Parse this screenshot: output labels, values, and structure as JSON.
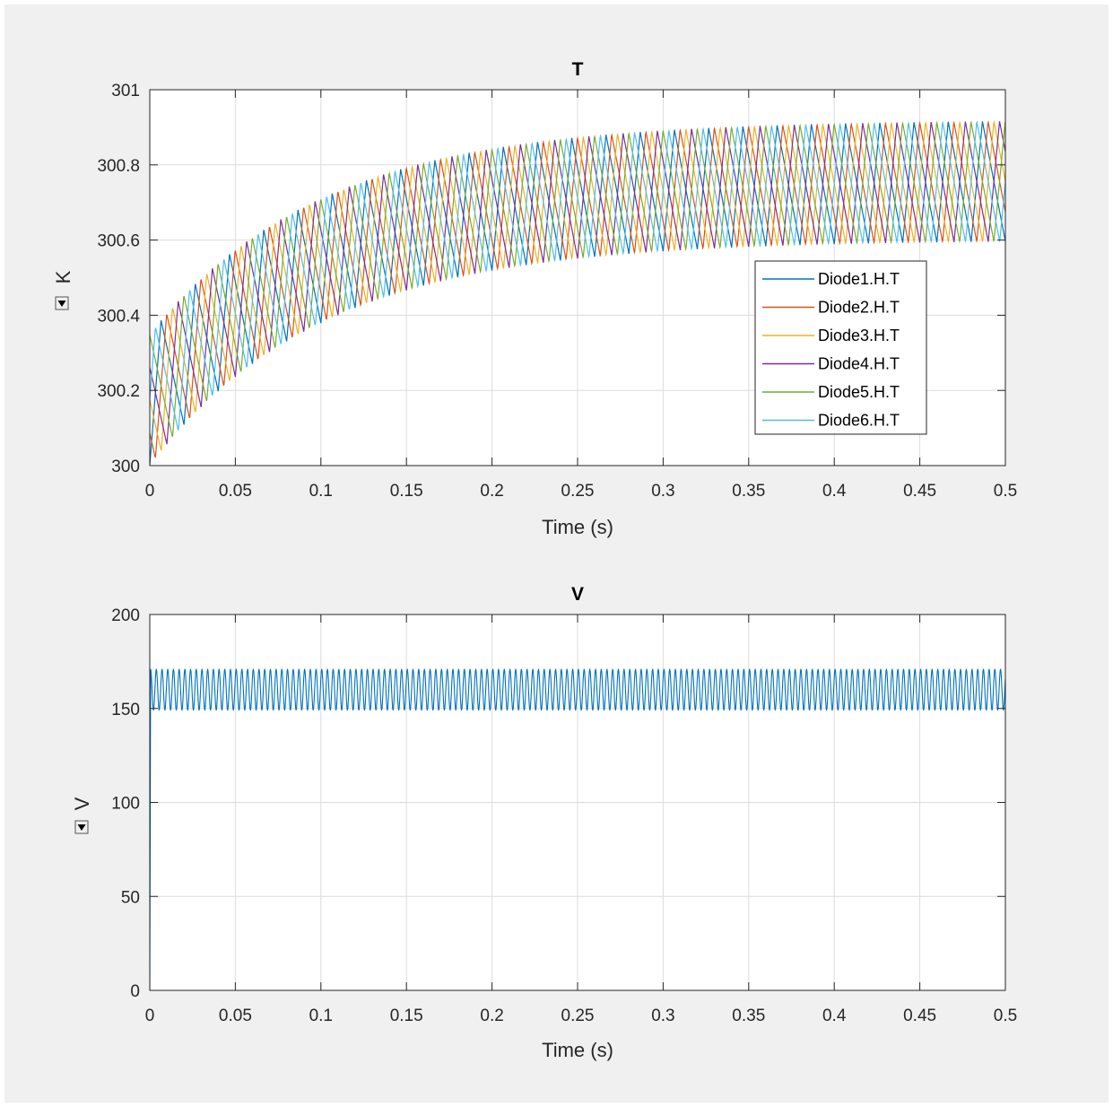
{
  "colors": {
    "figure_background": "#f0f0f0",
    "axes_background": "#ffffff",
    "grid": "#dcdcdc",
    "axis": "#262626"
  },
  "icons": {
    "unit_selector": "dropdown-triangle-icon"
  },
  "chart_data": [
    {
      "type": "line",
      "title": "T",
      "xlabel": "Time (s)",
      "ylabel": "K",
      "xlim": [
        0,
        0.5
      ],
      "ylim": [
        300,
        301
      ],
      "xticks": [
        "0",
        "0.05",
        "0.1",
        "0.15",
        "0.2",
        "0.25",
        "0.3",
        "0.35",
        "0.4",
        "0.45",
        "0.5"
      ],
      "yticks": [
        "300",
        "300.2",
        "300.4",
        "300.6",
        "300.8",
        "301"
      ],
      "grid": true,
      "legend": "right",
      "signal_frequency_hz": 50,
      "series": [
        {
          "name": "Diode1.H.T",
          "color": "#0072bd",
          "phase_s": 0.0,
          "peak_start": 300.35,
          "peak_end": 300.92,
          "valley_start": 300.0,
          "valley_end": 300.6
        },
        {
          "name": "Diode2.H.T",
          "color": "#d95319",
          "phase_s": 0.0033,
          "peak_start": 300.35,
          "peak_end": 300.92,
          "valley_start": 300.0,
          "valley_end": 300.6
        },
        {
          "name": "Diode3.H.T",
          "color": "#edb120",
          "phase_s": 0.0067,
          "peak_start": 300.35,
          "peak_end": 300.92,
          "valley_start": 300.0,
          "valley_end": 300.6
        },
        {
          "name": "Diode4.H.T",
          "color": "#7e2f8e",
          "phase_s": 0.01,
          "peak_start": 300.35,
          "peak_end": 300.92,
          "valley_start": 300.0,
          "valley_end": 300.6
        },
        {
          "name": "Diode5.H.T",
          "color": "#77ac30",
          "phase_s": 0.0133,
          "peak_start": 300.35,
          "peak_end": 300.92,
          "valley_start": 300.0,
          "valley_end": 300.6
        },
        {
          "name": "Diode6.H.T",
          "color": "#4dbeee",
          "phase_s": 0.0167,
          "peak_start": 300.35,
          "peak_end": 300.92,
          "valley_start": 300.0,
          "valley_end": 300.6
        }
      ]
    },
    {
      "type": "line",
      "title": "V",
      "xlabel": "Time (s)",
      "ylabel": "V",
      "xlim": [
        0,
        0.5
      ],
      "ylim": [
        0,
        200
      ],
      "xticks": [
        "0",
        "0.05",
        "0.1",
        "0.15",
        "0.2",
        "0.25",
        "0.3",
        "0.35",
        "0.4",
        "0.45",
        "0.5"
      ],
      "yticks": [
        "0",
        "50",
        "100",
        "150",
        "200"
      ],
      "grid": true,
      "ripple_frequency_hz": 300,
      "series": [
        {
          "name": "",
          "color": "#0072bd",
          "min": 149,
          "max": 171,
          "rise_time_s": 0.0005
        }
      ]
    }
  ]
}
